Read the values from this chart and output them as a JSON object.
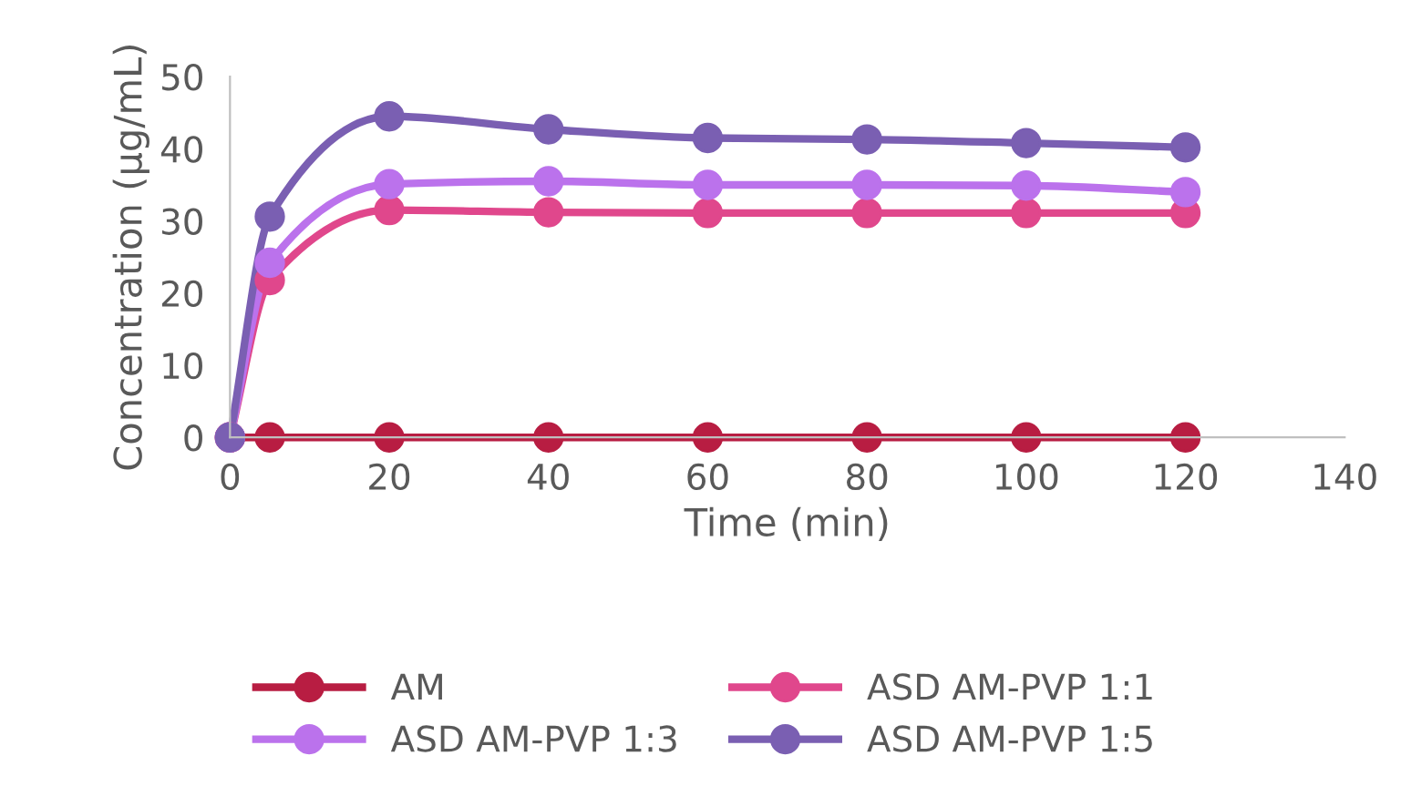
{
  "chart_data": {
    "type": "line",
    "xlabel": "Time (min)",
    "ylabel": "Concentration (µg/mL)",
    "x": [
      0,
      5,
      20,
      40,
      60,
      80,
      100,
      120
    ],
    "series": [
      {
        "name": "AM",
        "color": "#b81d42",
        "values": [
          0,
          0,
          0,
          0,
          0,
          0,
          0,
          0
        ]
      },
      {
        "name": "ASD AM-PVP 1:1",
        "color": "#e0478c",
        "values": [
          0,
          21.8,
          31.5,
          31.2,
          31.1,
          31.1,
          31.1,
          31.1
        ]
      },
      {
        "name": "ASD AM-PVP 1:3",
        "color": "#bb72ec",
        "values": [
          0,
          24.2,
          35.1,
          35.5,
          35.0,
          35.0,
          34.9,
          34.0
        ]
      },
      {
        "name": "ASD AM-PVP 1:5",
        "color": "#7a5fb2",
        "values": [
          0,
          30.6,
          44.5,
          42.7,
          41.5,
          41.3,
          40.8,
          40.2
        ]
      }
    ],
    "xlim": [
      0,
      140
    ],
    "xticks": [
      0,
      20,
      40,
      60,
      80,
      100,
      120,
      140
    ],
    "ylim": [
      0,
      50
    ],
    "yticks": [
      0,
      10,
      20,
      30,
      40,
      50
    ],
    "grid": false,
    "legend": "bottom",
    "marker": "circle",
    "line_style": "solid"
  }
}
